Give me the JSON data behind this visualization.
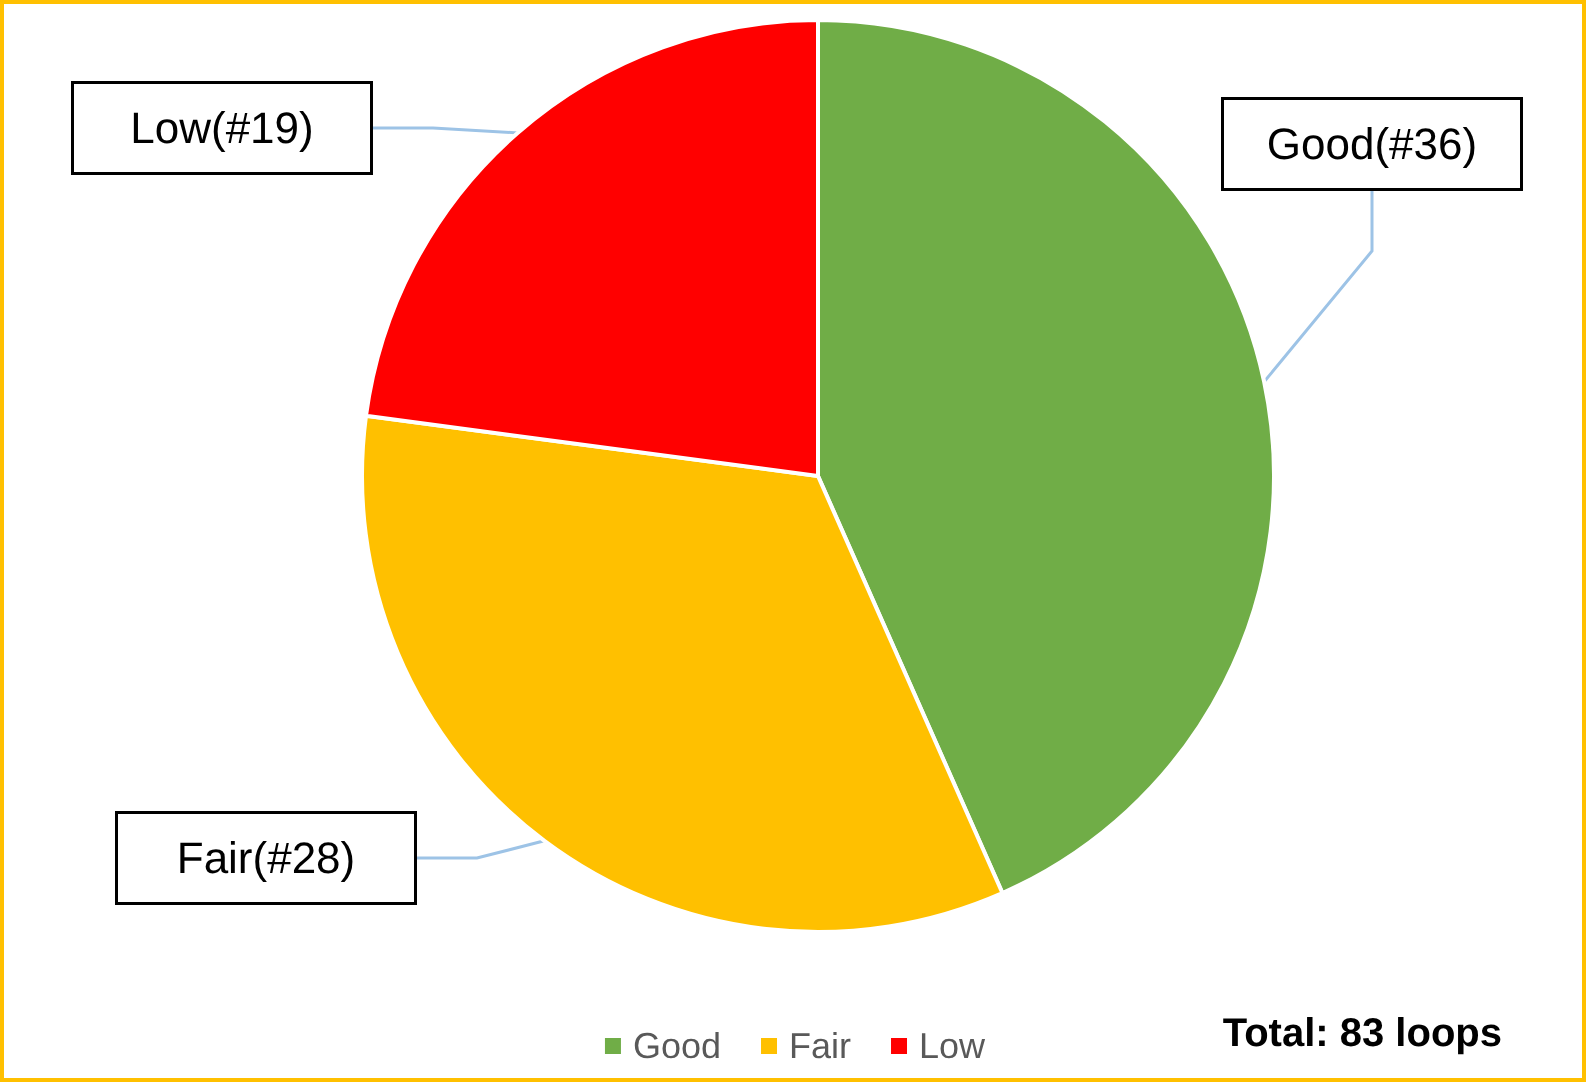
{
  "chart_data": {
    "type": "pie",
    "categories": [
      "Good",
      "Fair",
      "Low"
    ],
    "values": [
      36,
      28,
      19
    ],
    "colors": [
      "#70ad47",
      "#ffc000",
      "#ff0000"
    ],
    "value_labels": [
      "Good(#36)",
      "Fair(#28)",
      "Low(#19)"
    ],
    "legend": "bottom",
    "annotations": [
      "Total: 83 loops"
    ]
  }
}
